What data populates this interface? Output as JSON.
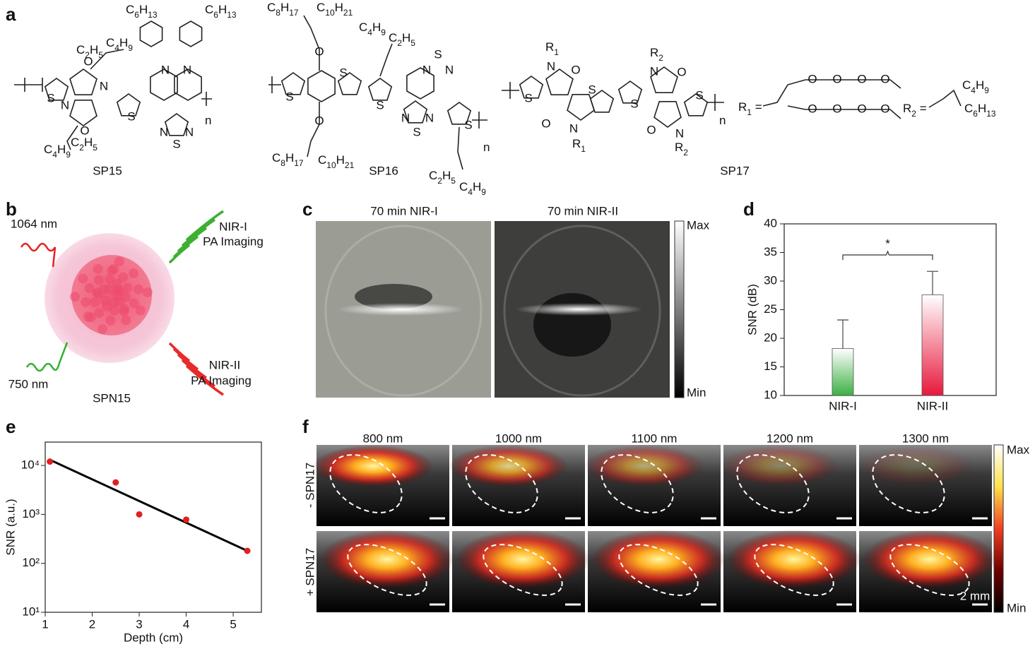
{
  "panel_labels": [
    "a",
    "b",
    "c",
    "d",
    "e",
    "f"
  ],
  "panel_a": {
    "structures": [
      {
        "name": "SP15",
        "labels": [
          "C6H13",
          "C6H13",
          "C2H5",
          "C4H9",
          "C4H9",
          "C2H5",
          "n"
        ],
        "atoms": [
          "O",
          "N",
          "N",
          "O",
          "S",
          "S",
          "N",
          "N",
          "N",
          "S",
          "N"
        ]
      },
      {
        "name": "SP16",
        "labels": [
          "C8H17",
          "C10H21",
          "C4H9",
          "C2H5",
          "C8H17",
          "C10H21",
          "C2H5",
          "C4H9",
          "n"
        ],
        "atoms": [
          "O",
          "O",
          "S",
          "S",
          "S",
          "N",
          "S",
          "N",
          "N",
          "S",
          "N",
          "S"
        ]
      },
      {
        "name": "SP17",
        "labels": [
          "R1",
          "R2",
          "R1",
          "R2",
          "n",
          "R1 =",
          "R2 =",
          "C4H9",
          "C6H13"
        ],
        "atoms": [
          "N",
          "O",
          "S",
          "S",
          "O",
          "N",
          "S",
          "N",
          "O",
          "S",
          "O",
          "N",
          "O",
          "O",
          "O",
          "O",
          "O",
          "O",
          "O",
          "O"
        ]
      }
    ]
  },
  "panel_b": {
    "texts": [
      "1064 nm",
      "NIR-I",
      "PA Imaging",
      "750 nm",
      "NIR-II",
      "PA Imaging",
      "SPN15"
    ]
  },
  "panel_c": {
    "titles": [
      "70 min NIR-I",
      "70 min NIR-II"
    ],
    "colorbar": [
      "Max",
      "Min"
    ]
  },
  "panel_f": {
    "titles": [
      "800 nm",
      "1000 nm",
      "1100 nm",
      "1200 nm",
      "1300 nm"
    ],
    "rows": [
      "- SPN17",
      "+ SPN17"
    ],
    "colorbar": [
      "Max",
      "Min"
    ],
    "scale": "2 mm"
  },
  "chart_data": [
    {
      "type": "bar",
      "categories": [
        "NIR-I",
        "NIR-II"
      ],
      "values": [
        18.2,
        27.6
      ],
      "errors": [
        5.0,
        4.1
      ],
      "colors": [
        "#3cb043",
        "#e8183c"
      ],
      "ylim": [
        10,
        40
      ],
      "yticks": [
        10,
        15,
        20,
        25,
        30,
        35,
        40
      ],
      "ylabel": "SNR (dB)",
      "annotation": "*"
    },
    {
      "type": "scatter",
      "x": [
        1.1,
        2.5,
        3,
        4,
        5.3
      ],
      "values": [
        12000,
        4500,
        1000,
        780,
        180
      ],
      "color": "#e02020",
      "fit": {
        "x": [
          1.1,
          5.3
        ],
        "values": [
          13000,
          180
        ],
        "color": "#000000"
      },
      "xlim": [
        1,
        5.6
      ],
      "ylim": [
        10,
        30000
      ],
      "yscale": "log",
      "xticks": [
        1,
        2,
        3,
        4,
        5
      ],
      "yticks": [
        {
          "value": 10,
          "label": "10¹"
        },
        {
          "value": 100,
          "label": "10²"
        },
        {
          "value": 1000,
          "label": "10³"
        },
        {
          "value": 10000,
          "label": "10⁴"
        }
      ],
      "xlabel": "Depth (cm)",
      "ylabel": "SNR (a.u.)"
    }
  ]
}
